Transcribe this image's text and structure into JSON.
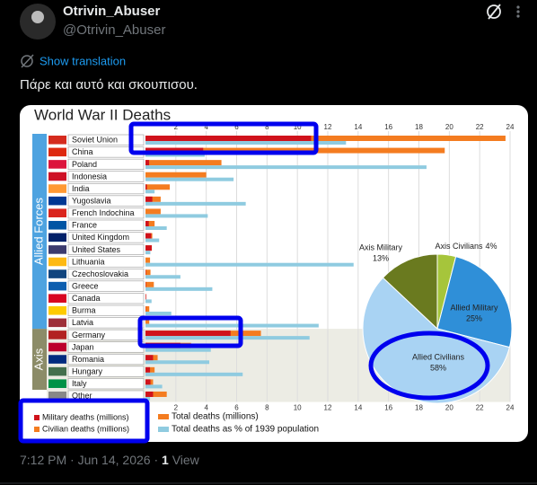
{
  "tweet": {
    "name": "Otrivin_Abuser",
    "handle": "@Otrivin_Abuser",
    "translate": "Show translation",
    "text": "Πάρε και αυτό και σκουπισου.",
    "time": "7:12 PM",
    "date": "Jun 14, 2026",
    "views": "1",
    "views_label": "View"
  },
  "chart_data": [
    {
      "type": "bar",
      "orientation": "horizontal",
      "title": "World War II Deaths",
      "groups": [
        {
          "label": "Allied Forces",
          "start": 0,
          "end": 15
        },
        {
          "label": "Axis",
          "start": 16,
          "end": 20
        }
      ],
      "categories": [
        "Soviet Union",
        "China",
        "Poland",
        "Indonesia",
        "India",
        "Yugoslavia",
        "French Indochina",
        "France",
        "United Kingdom",
        "United States",
        "Lithuania",
        "Czechoslovakia",
        "Greece",
        "Canada",
        "Burma",
        "Latvia",
        "Germany",
        "Japan",
        "Romania",
        "Hungary",
        "Italy",
        "Other"
      ],
      "series": [
        {
          "name": "Military deaths (millions)",
          "color": "#d0121b",
          "values": [
            10.9,
            3.8,
            0.24,
            0,
            0.09,
            0.45,
            0,
            0.22,
            0.38,
            0.41,
            0,
            0.03,
            0.03,
            0.04,
            0.02,
            0,
            5.6,
            2.3,
            0.5,
            0.3,
            0.33,
            0.5
          ]
        },
        {
          "name": "Total deaths (millions)",
          "color": "#f47c20",
          "values": [
            23.7,
            19.7,
            5.0,
            4.0,
            1.6,
            1.0,
            1.0,
            0.6,
            0.45,
            0.42,
            0.3,
            0.33,
            0.55,
            0.04,
            0.25,
            0.25,
            7.6,
            3.0,
            0.8,
            0.6,
            0.5,
            1.4
          ]
        },
        {
          "name": "Total deaths as % of 1939 population",
          "color": "#8fcbe0",
          "values": [
            13.2,
            3.9,
            18.5,
            5.8,
            0.6,
            6.6,
            4.1,
            1.4,
            0.9,
            0.32,
            13.7,
            2.3,
            4.4,
            0.4,
            1.7,
            11.4,
            10.8,
            4.3,
            4.2,
            6.4,
            1.1,
            0.3
          ]
        }
      ],
      "legend_items": [
        {
          "label": "Civilian deaths (millions)",
          "color": "#f47c20"
        }
      ],
      "xlim": [
        0,
        24
      ],
      "xticks": [
        2,
        4,
        6,
        8,
        10,
        12,
        14,
        16,
        18,
        20,
        22,
        24
      ],
      "grid": true
    },
    {
      "type": "pie",
      "labels": [
        "Axis Civilians",
        "Allied Military",
        "Allied Civilians",
        "Axis Military"
      ],
      "values": [
        4,
        25,
        58,
        13
      ],
      "value_labels": [
        "4%",
        "25%",
        "58%",
        "13%"
      ],
      "colors": [
        "#a6c53b",
        "#2f8fd8",
        "#a9d3f3",
        "#6a7a1f"
      ]
    }
  ]
}
